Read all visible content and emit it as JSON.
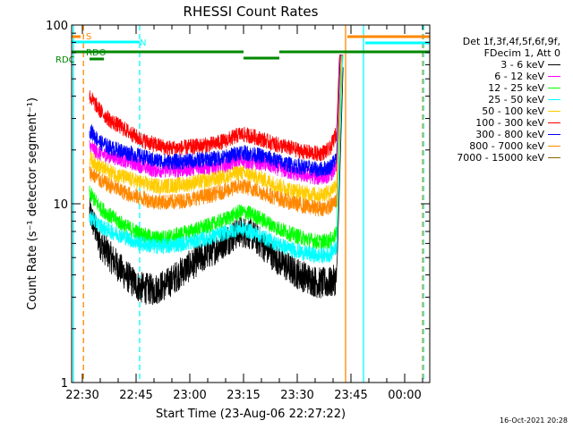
{
  "chart_data": {
    "type": "line",
    "title": "RHESSI Count Rates",
    "xlabel": "Start Time (23-Aug-06 22:27:22)",
    "ylabel": "Count Rate (s⁻¹ detector segment⁻¹)",
    "yscale": "log",
    "ylim": [
      1,
      100
    ],
    "xlim_minutes_after_2230": [
      -3,
      97
    ],
    "x_ticks": [
      "22:30",
      "22:45",
      "23:00",
      "23:15",
      "23:30",
      "23:45",
      "00:00"
    ],
    "y_ticks": [
      "1",
      "10",
      "100"
    ],
    "legend": {
      "placement": "right",
      "header": [
        "Det 1f,3f,4f,5f,6f,9f,",
        "FDecim 1, Att 0"
      ]
    },
    "series": [
      {
        "name": "3 - 6 keV",
        "color": "#000000",
        "x": [
          2,
          5,
          8,
          12,
          16,
          20,
          24,
          28,
          32,
          36,
          40,
          44,
          47,
          50,
          54,
          58,
          62,
          66,
          69,
          71
        ],
        "values": [
          9.0,
          6.0,
          5.0,
          4.0,
          3.4,
          3.3,
          3.6,
          4.2,
          4.8,
          5.4,
          6.2,
          7.0,
          6.8,
          6.0,
          5.0,
          4.3,
          3.9,
          3.6,
          3.6,
          3.8
        ]
      },
      {
        "name": "6 - 12 keV",
        "color": "#ff00ff",
        "x": [
          2,
          5,
          8,
          12,
          16,
          20,
          24,
          28,
          32,
          36,
          40,
          44,
          47,
          50,
          54,
          58,
          62,
          66,
          69,
          71
        ],
        "values": [
          21,
          19,
          18.5,
          17.5,
          16.5,
          15.5,
          15.5,
          15.5,
          16,
          16,
          16.5,
          17.5,
          17,
          17,
          16,
          15,
          14.5,
          14,
          14.5,
          16
        ]
      },
      {
        "name": "12 - 25 keV",
        "color": "#00ff00",
        "x": [
          2,
          5,
          8,
          12,
          16,
          20,
          24,
          28,
          32,
          36,
          40,
          44,
          47,
          50,
          54,
          58,
          62,
          66,
          69,
          71
        ],
        "values": [
          11.5,
          9.5,
          8.5,
          7.5,
          6.8,
          6.4,
          6.5,
          6.8,
          7.2,
          7.6,
          8.2,
          9.0,
          8.8,
          8.2,
          7.4,
          6.8,
          6.4,
          6.1,
          6.2,
          6.8
        ]
      },
      {
        "name": "25 - 50 keV",
        "color": "#00ffff",
        "x": [
          2,
          5,
          8,
          12,
          16,
          20,
          24,
          28,
          32,
          36,
          40,
          44,
          47,
          50,
          54,
          58,
          62,
          66,
          69,
          71
        ],
        "values": [
          8.5,
          7.5,
          7.0,
          6.5,
          6.0,
          5.8,
          5.8,
          6.0,
          6.2,
          6.5,
          6.9,
          7.3,
          7.0,
          6.6,
          6.0,
          5.6,
          5.3,
          5.1,
          5.2,
          5.8
        ]
      },
      {
        "name": "50 - 100 keV",
        "color": "#ffcc00",
        "x": [
          2,
          5,
          8,
          12,
          16,
          20,
          24,
          28,
          32,
          36,
          40,
          44,
          47,
          50,
          54,
          58,
          62,
          66,
          69,
          71
        ],
        "values": [
          18,
          16,
          15,
          14,
          13.2,
          12.6,
          12.6,
          12.8,
          13.2,
          13.6,
          14.2,
          15.0,
          14.5,
          13.8,
          12.8,
          12.0,
          11.5,
          11.2,
          11.6,
          13
        ]
      },
      {
        "name": "100 - 300 keV",
        "color": "#ff0000",
        "x": [
          2,
          5,
          8,
          12,
          16,
          20,
          24,
          28,
          32,
          36,
          40,
          44,
          47,
          50,
          54,
          58,
          62,
          66,
          69,
          71
        ],
        "values": [
          40,
          33,
          29,
          26,
          23,
          21.5,
          20.5,
          20.5,
          21,
          21.5,
          22.5,
          24.5,
          24,
          23,
          21.5,
          20.5,
          19.5,
          19,
          20,
          25
        ]
      },
      {
        "name": "300 - 800 keV",
        "color": "#0000ff",
        "x": [
          2,
          5,
          8,
          12,
          16,
          20,
          24,
          28,
          32,
          36,
          40,
          44,
          47,
          50,
          54,
          58,
          62,
          66,
          69,
          71
        ],
        "values": [
          26,
          22,
          20.5,
          19.5,
          18.5,
          17.5,
          17.2,
          17.2,
          17.5,
          17.8,
          18.2,
          19.5,
          19,
          18.5,
          17.5,
          16.5,
          16,
          15.5,
          16,
          18
        ]
      },
      {
        "name": "800 - 7000 keV",
        "color": "#ff8800",
        "x": [
          2,
          5,
          8,
          12,
          16,
          20,
          24,
          28,
          32,
          36,
          40,
          44,
          47,
          50,
          54,
          58,
          62,
          66,
          69,
          71
        ],
        "values": [
          15,
          13.5,
          12.5,
          11.5,
          10.8,
          10.3,
          10.2,
          10.4,
          10.8,
          11.2,
          11.8,
          12.6,
          12.2,
          11.6,
          10.8,
          10.2,
          9.7,
          9.4,
          9.6,
          10.5
        ]
      },
      {
        "name": "7000 - 15000 keV",
        "color": "#886600",
        "x": [],
        "values": []
      }
    ],
    "markers": {
      "attenuator_S": {
        "label": "S",
        "color": "#ff8800",
        "x_minutes": [
          -3,
          -0.5
        ]
      },
      "night_N": {
        "label": "N",
        "color": "#00ffff",
        "x_minutes": [
          -3,
          16
        ]
      },
      "rdo_top": {
        "label": "RDO",
        "color": "#008800"
      },
      "rdo_bottom": {
        "label": "RDC",
        "color": "#008800"
      }
    },
    "vertical_lines": [
      {
        "color": "#00ffff",
        "style": "solid",
        "x_minutes": -2.5
      },
      {
        "color": "#ff8800",
        "style": "dashed",
        "x_minutes": 0.3
      },
      {
        "color": "#00ffff",
        "style": "dashed",
        "x_minutes": 16
      },
      {
        "color": "#ff8800",
        "style": "solid",
        "x_minutes": 73.5
      },
      {
        "color": "#00ffff",
        "style": "solid",
        "x_minutes": 78.5
      },
      {
        "color": "#ff8800",
        "style": "dashed",
        "x_minutes": 95
      },
      {
        "color": "#00ffff",
        "style": "dashed",
        "x_minutes": 95.3
      }
    ]
  },
  "footer": {
    "timestamp": "16-Oct-2021 20:28"
  }
}
